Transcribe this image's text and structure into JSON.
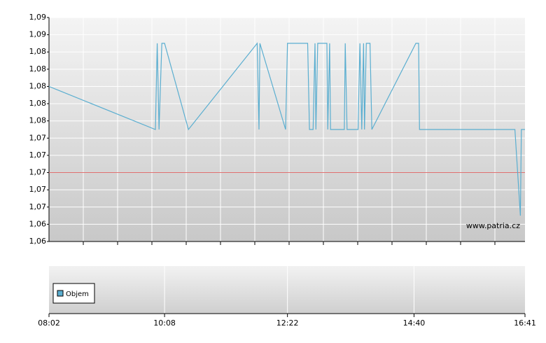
{
  "chart_data": {
    "type": "line",
    "x": [
      "08:02",
      "09:58",
      "10:00",
      "10:02",
      "10:05",
      "10:08",
      "10:34",
      "11:49",
      "11:51",
      "11:52",
      "12:20",
      "12:22",
      "12:44",
      "12:46",
      "12:50",
      "12:52",
      "12:53",
      "12:55",
      "13:05",
      "13:06",
      "13:08",
      "13:09",
      "13:24",
      "13:25",
      "13:27",
      "13:39",
      "13:41",
      "13:43",
      "13:45",
      "13:46",
      "13:48",
      "13:52",
      "13:54",
      "14:42",
      "14:45",
      "14:46",
      "16:30",
      "16:36",
      "16:37",
      "16:41"
    ],
    "series": [
      {
        "name": "Objem",
        "color": "#5aaed0",
        "values": [
          1.08,
          1.075,
          1.085,
          1.075,
          1.085,
          1.085,
          1.075,
          1.085,
          1.075,
          1.085,
          1.075,
          1.085,
          1.085,
          1.075,
          1.075,
          1.085,
          1.075,
          1.085,
          1.085,
          1.075,
          1.085,
          1.075,
          1.075,
          1.085,
          1.075,
          1.075,
          1.085,
          1.075,
          1.085,
          1.075,
          1.085,
          1.085,
          1.075,
          1.085,
          1.085,
          1.075,
          1.075,
          1.065,
          1.075,
          1.075
        ]
      }
    ],
    "reference_line": {
      "value": 1.07,
      "color": "#e07070"
    },
    "ylim": [
      1.062,
      1.088
    ],
    "yticks": [
      {
        "value": 1.062,
        "label": "1,06"
      },
      {
        "value": 1.064,
        "label": "1,06"
      },
      {
        "value": 1.066,
        "label": "1,07"
      },
      {
        "value": 1.068,
        "label": "1,07"
      },
      {
        "value": 1.07,
        "label": "1,07"
      },
      {
        "value": 1.072,
        "label": "1,07"
      },
      {
        "value": 1.074,
        "label": "1,07"
      },
      {
        "value": 1.076,
        "label": "1,08"
      },
      {
        "value": 1.078,
        "label": "1,08"
      },
      {
        "value": 1.08,
        "label": "1,08"
      },
      {
        "value": 1.082,
        "label": "1,08"
      },
      {
        "value": 1.084,
        "label": "1,08"
      },
      {
        "value": 1.086,
        "label": "1,09"
      },
      {
        "value": 1.088,
        "label": "1,09"
      }
    ],
    "xlim": [
      "08:02",
      "16:41"
    ],
    "xticks": [
      "08:02",
      "10:08",
      "12:22",
      "14:40",
      "16:41"
    ],
    "watermark": "www.patria.cz",
    "grid": true
  }
}
